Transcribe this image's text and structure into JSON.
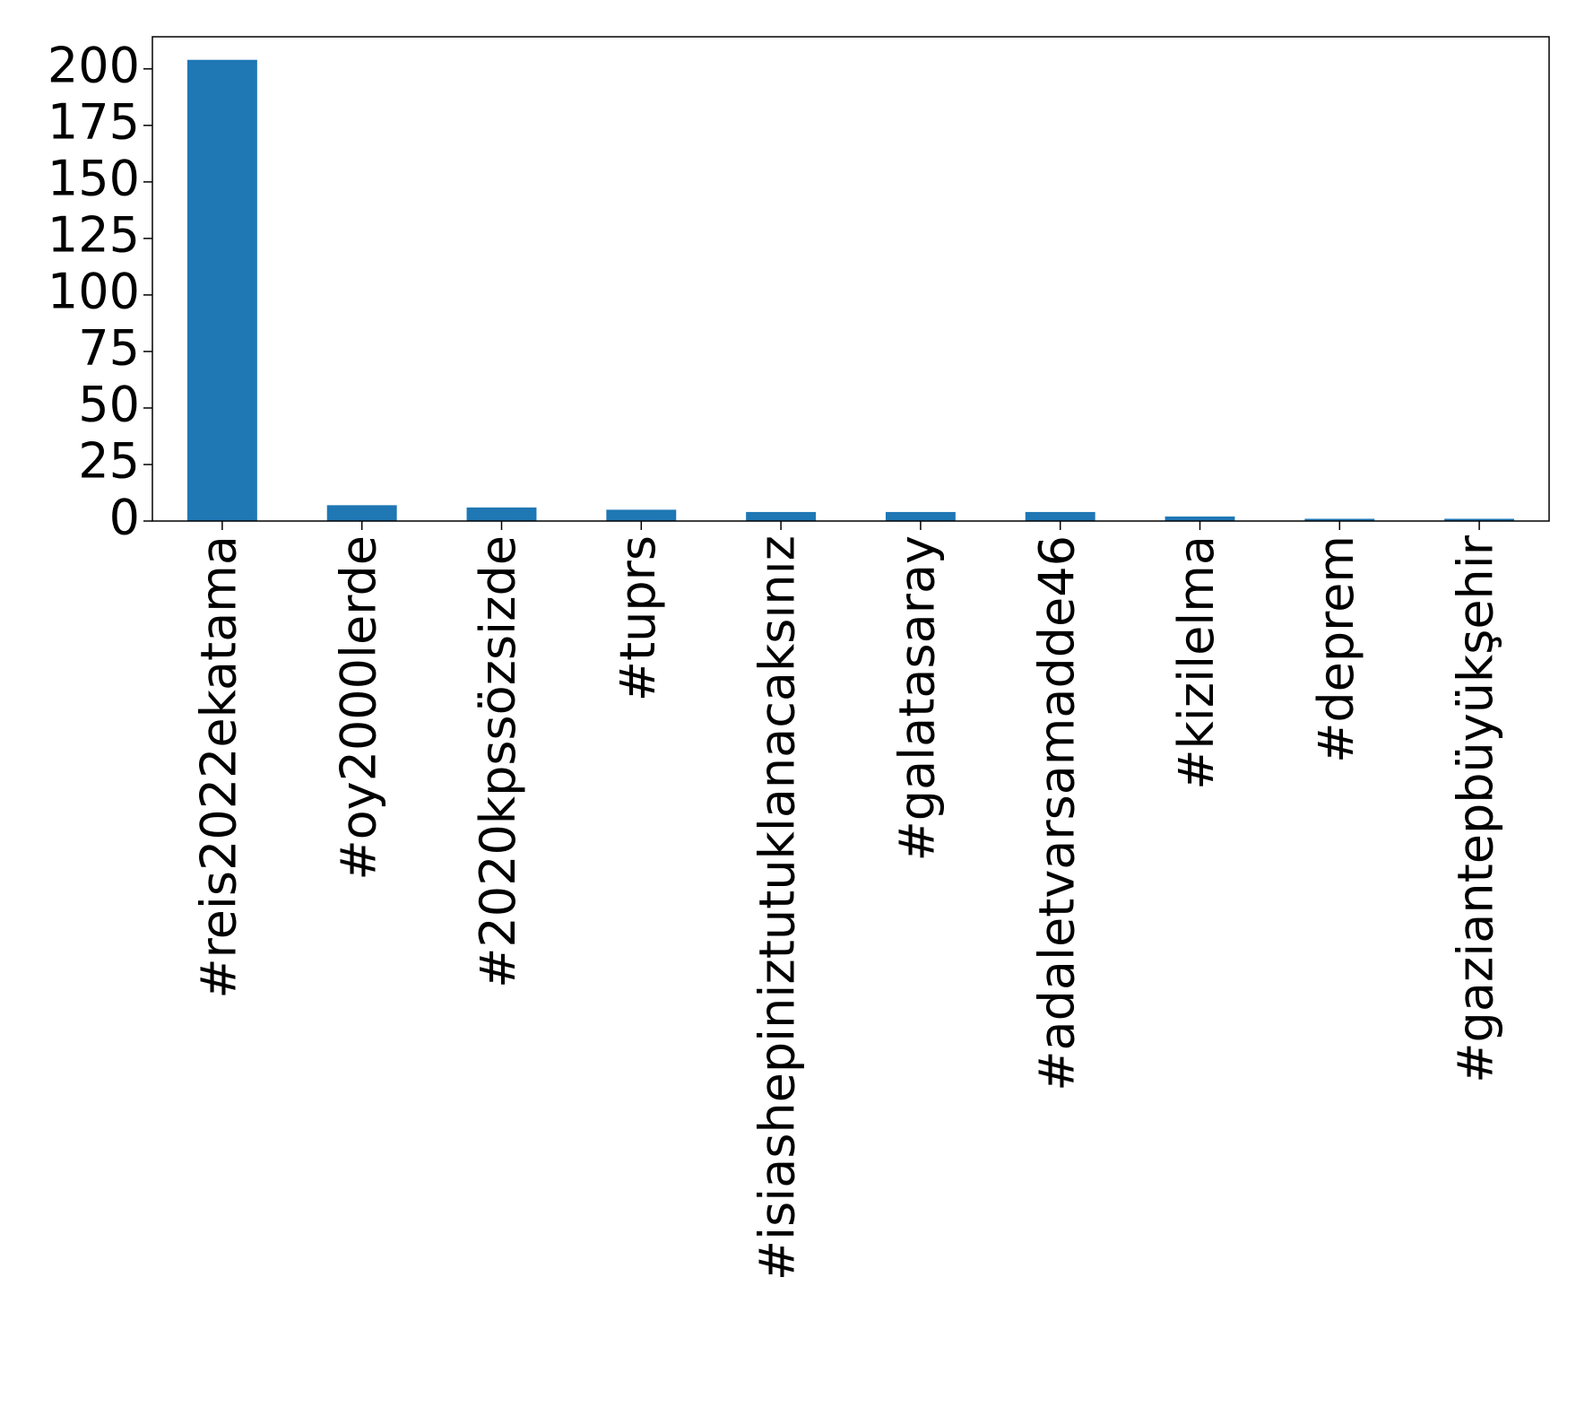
{
  "chart_data": {
    "type": "bar",
    "categories": [
      "#reis2022ekatama",
      "#oy2000lerde",
      "#2020kpssözsizde",
      "#tuprs",
      "#isiashepiniztutuklanacaksınız",
      "#galatasaray",
      "#adaletvarsamadde46",
      "#kizilelma",
      "#deprem",
      "#gaziantepbüyükşehir"
    ],
    "values": [
      204,
      7,
      6,
      5,
      4,
      4,
      4,
      2,
      1,
      1
    ],
    "color": "#1f77b4",
    "ylim": [
      0,
      214.2
    ],
    "yticks": [
      0,
      25,
      50,
      75,
      100,
      125,
      150,
      175,
      200
    ],
    "grid": false
  }
}
